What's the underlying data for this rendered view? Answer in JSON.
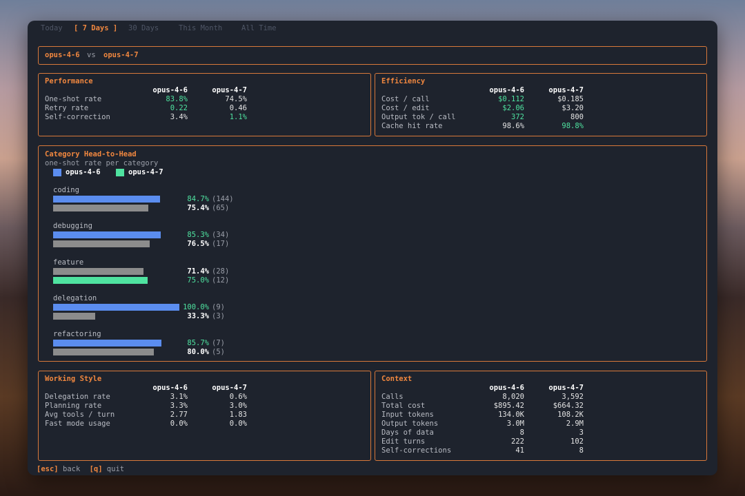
{
  "tabs": {
    "items": [
      "Today",
      "[ 7 Days ]",
      "30 Days",
      "This Month",
      "All Time"
    ],
    "active": 1
  },
  "header": {
    "model_a": "opus-4-6",
    "vs": "vs",
    "model_b": "opus-4-7"
  },
  "performance": {
    "title": "Performance",
    "columns": [
      "opus-4-6",
      "opus-4-7"
    ],
    "rows": [
      {
        "label": "One-shot rate",
        "values": [
          "83.8%",
          "74.5%"
        ],
        "best": 0
      },
      {
        "label": "Retry rate",
        "values": [
          "0.22",
          "0.46"
        ],
        "best": 0
      },
      {
        "label": "Self-correction",
        "values": [
          "3.4%",
          "1.1%"
        ],
        "best": 1
      }
    ]
  },
  "efficiency": {
    "title": "Efficiency",
    "columns": [
      "opus-4-6",
      "opus-4-7"
    ],
    "rows": [
      {
        "label": "Cost / call",
        "values": [
          "$0.112",
          "$0.185"
        ],
        "best": 0
      },
      {
        "label": "Cost / edit",
        "values": [
          "$2.06",
          "$3.20"
        ],
        "best": 0
      },
      {
        "label": "Output tok / call",
        "values": [
          "372",
          "800"
        ],
        "best": 0
      },
      {
        "label": "Cache hit rate",
        "values": [
          "98.6%",
          "98.8%"
        ],
        "best": 1
      }
    ]
  },
  "category": {
    "title": "Category Head-to-Head",
    "subtitle": "one-shot rate per category",
    "legend": [
      {
        "name": "opus-4-6",
        "color": "#5b8def"
      },
      {
        "name": "opus-4-7",
        "color": "#4fe3a0"
      }
    ],
    "loser_color": "#8c8c8c",
    "groups": [
      {
        "name": "coding",
        "values": [
          84.7,
          75.4
        ],
        "value_labels": [
          "84.7%",
          "75.4%"
        ],
        "counts": [
          144,
          65
        ],
        "count_labels": [
          "(144)",
          "(65)"
        ]
      },
      {
        "name": "debugging",
        "values": [
          85.3,
          76.5
        ],
        "value_labels": [
          "85.3%",
          "76.5%"
        ],
        "counts": [
          34,
          17
        ],
        "count_labels": [
          "(34)",
          "(17)"
        ]
      },
      {
        "name": "feature",
        "values": [
          71.4,
          75.0
        ],
        "value_labels": [
          "71.4%",
          "75.0%"
        ],
        "counts": [
          28,
          12
        ],
        "count_labels": [
          "(28)",
          "(12)"
        ]
      },
      {
        "name": "delegation",
        "values": [
          100.0,
          33.3
        ],
        "value_labels": [
          "100.0%",
          "33.3%"
        ],
        "counts": [
          9,
          3
        ],
        "count_labels": [
          "(9)",
          "(3)"
        ]
      },
      {
        "name": "refactoring",
        "values": [
          85.7,
          80.0
        ],
        "value_labels": [
          "85.7%",
          "80.0%"
        ],
        "counts": [
          7,
          5
        ],
        "count_labels": [
          "(7)",
          "(5)"
        ]
      }
    ]
  },
  "working_style": {
    "title": "Working Style",
    "columns": [
      "opus-4-6",
      "opus-4-7"
    ],
    "rows": [
      {
        "label": "Delegation rate",
        "values": [
          "3.1%",
          "0.6%"
        ]
      },
      {
        "label": "Planning rate",
        "values": [
          "3.3%",
          "3.0%"
        ]
      },
      {
        "label": "Avg tools / turn",
        "values": [
          "2.77",
          "1.83"
        ]
      },
      {
        "label": "Fast mode usage",
        "values": [
          "0.0%",
          "0.0%"
        ]
      }
    ]
  },
  "context": {
    "title": "Context",
    "columns": [
      "opus-4-6",
      "opus-4-7"
    ],
    "rows": [
      {
        "label": "Calls",
        "values": [
          "8,020",
          "3,592"
        ]
      },
      {
        "label": "Total cost",
        "values": [
          "$895.42",
          "$664.32"
        ]
      },
      {
        "label": "Input tokens",
        "values": [
          "134.0K",
          "108.2K"
        ]
      },
      {
        "label": "Output tokens",
        "values": [
          "3.0M",
          "2.9M"
        ]
      },
      {
        "label": "Days of data",
        "values": [
          "8",
          "3"
        ]
      },
      {
        "label": "Edit turns",
        "values": [
          "222",
          "102"
        ]
      },
      {
        "label": "Self-corrections",
        "values": [
          "41",
          "8"
        ]
      }
    ]
  },
  "footer": [
    {
      "key": "[esc]",
      "label": "back"
    },
    {
      "key": "[q]",
      "label": "quit"
    }
  ]
}
